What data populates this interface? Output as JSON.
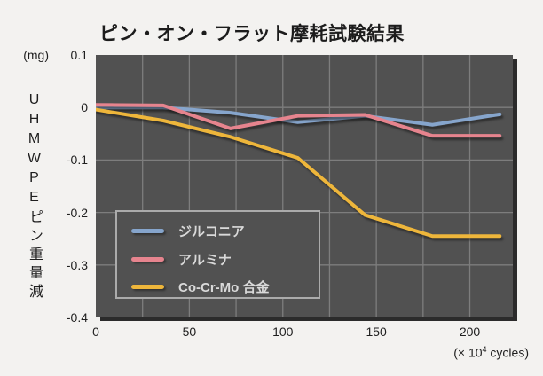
{
  "title": "ピン・オン・フラット摩耗試験結果",
  "chart_data": {
    "type": "line",
    "title": "ピン・オン・フラット摩耗試験結果",
    "x": [
      0,
      36,
      72,
      108,
      144,
      180,
      216
    ],
    "series": [
      {
        "name": "ジルコニア",
        "color": "#86a5cc",
        "values": [
          0,
          0,
          -0.01,
          -0.028,
          -0.016,
          -0.033,
          -0.013
        ]
      },
      {
        "name": "アルミナ",
        "color": "#e6848e",
        "values": [
          0.005,
          0.004,
          -0.04,
          -0.016,
          -0.014,
          -0.054,
          -0.054
        ]
      },
      {
        "name": "Co-Cr-Mo 合金",
        "color": "#eeb63b",
        "values": [
          -0.004,
          -0.025,
          -0.056,
          -0.096,
          -0.205,
          -0.245,
          -0.245
        ]
      }
    ],
    "xlim": [
      0,
      223
    ],
    "ylim": [
      -0.4,
      0.1
    ],
    "x_tick_values": [
      0,
      50,
      100,
      150,
      200
    ],
    "x_tick_labels": [
      "0",
      "50",
      "100",
      "150",
      "200"
    ],
    "y_tick_values": [
      0.1,
      0,
      -0.1,
      -0.2,
      -0.3,
      -0.4
    ],
    "y_tick_labels": [
      "0.1",
      "0",
      "-0.1",
      "-0.2",
      "-0.3",
      "-0.4"
    ],
    "grid_x": [
      25,
      50,
      75,
      100,
      125,
      150,
      175,
      200
    ],
    "grid_y": [
      0,
      -0.1,
      -0.2,
      -0.3
    ],
    "grid": true,
    "legend_position": "lower-left",
    "ylabel": "UHMWPEピン重量減",
    "y_unit_label": "(mg)",
    "x_unit_prefix": "(× 10",
    "x_unit_sup": "4",
    "x_unit_suffix": " cycles)",
    "colors": {
      "page_bg": "#f3f2f0",
      "plot_bg": "#515151",
      "plot_shadow": "#2b2b2b",
      "gridline": "#7d7d7d",
      "legend_border": "#ababab",
      "legend_text": "#d9d9d9",
      "axis_text": "#1f1f1f"
    }
  }
}
